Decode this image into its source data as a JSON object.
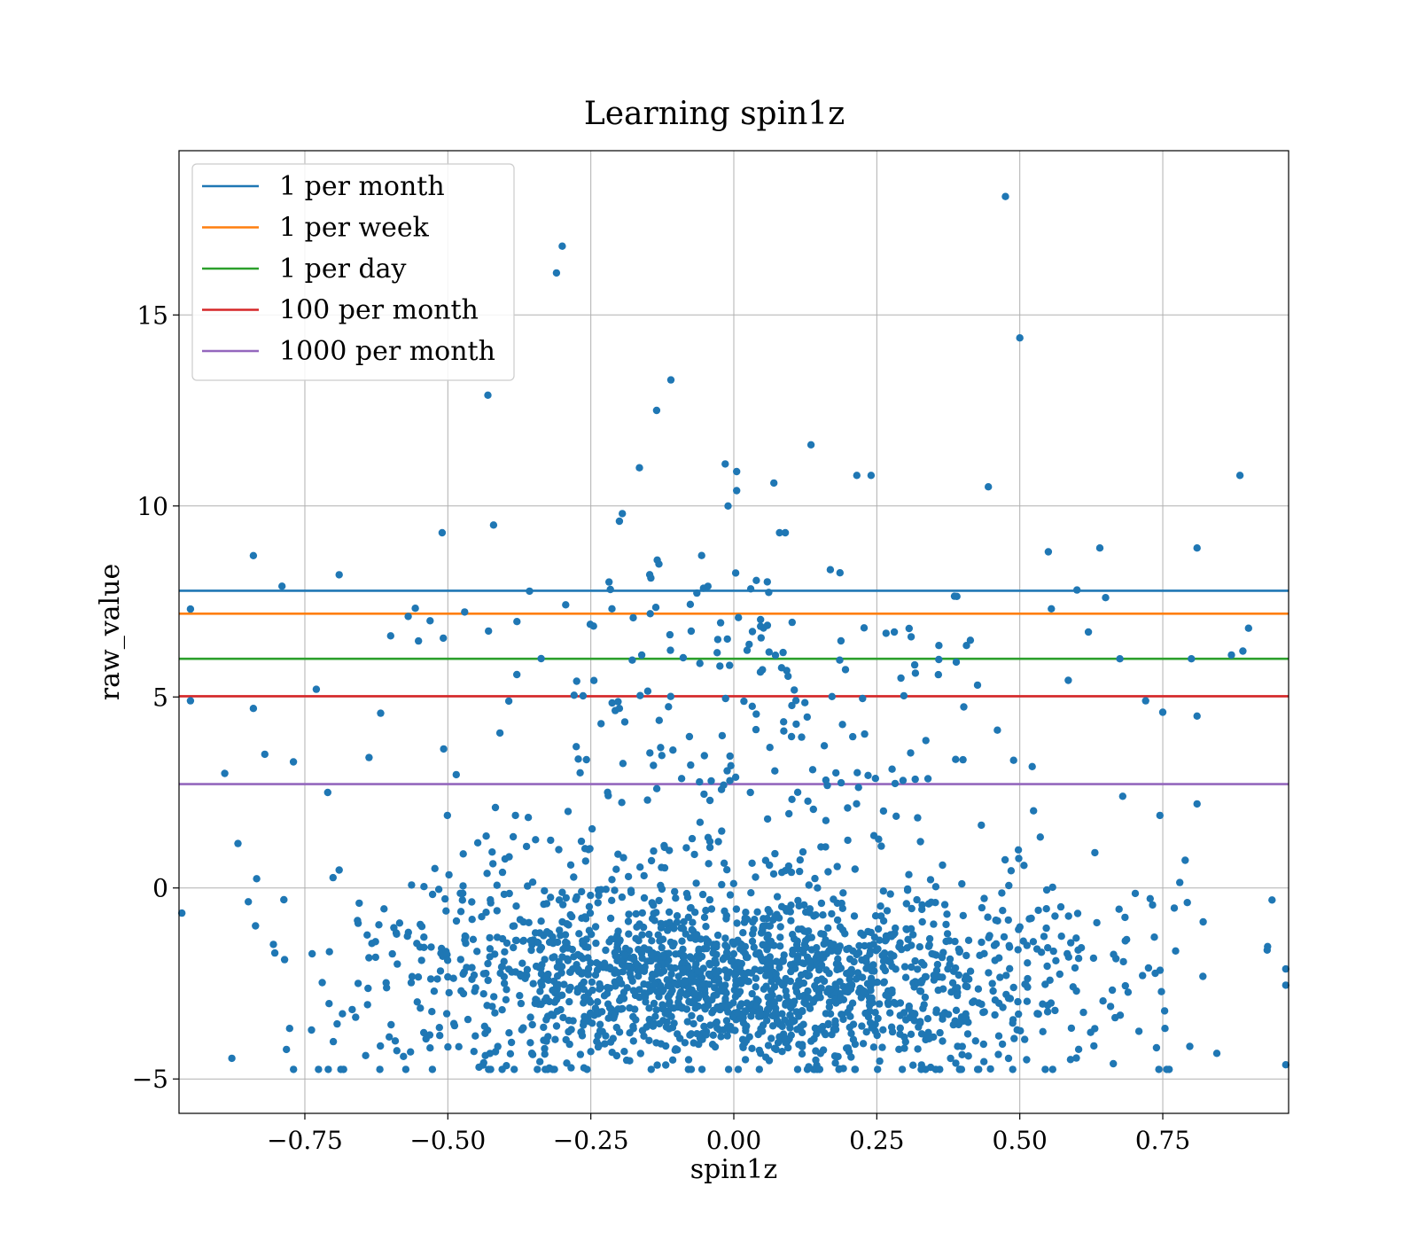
{
  "chart_data": {
    "type": "scatter",
    "title": "Learning spin1z",
    "xlabel": "spin1z",
    "ylabel": "raw_value",
    "xlim": [
      -0.97,
      0.97
    ],
    "ylim": [
      -5.9,
      19.3
    ],
    "xticks": [
      -0.75,
      -0.5,
      -0.25,
      0.0,
      0.25,
      0.5,
      0.75
    ],
    "xtick_labels": [
      "−0.75",
      "−0.50",
      "−0.25",
      "0.00",
      "0.25",
      "0.50",
      "0.75"
    ],
    "yticks": [
      -5,
      0,
      5,
      10,
      15
    ],
    "ytick_labels": [
      "−5",
      "0",
      "5",
      "10",
      "15"
    ],
    "grid": true,
    "legend_position": "upper-left",
    "scatter_color": "#1f77b4",
    "scatter_outliers": [
      {
        "x": 0.475,
        "y": 18.1
      },
      {
        "x": -0.3,
        "y": 16.8
      },
      {
        "x": -0.31,
        "y": 16.1
      },
      {
        "x": 0.5,
        "y": 14.4
      },
      {
        "x": -0.43,
        "y": 12.9
      },
      {
        "x": -0.11,
        "y": 13.3
      },
      {
        "x": -0.135,
        "y": 12.5
      },
      {
        "x": 0.135,
        "y": 11.6
      },
      {
        "x": -0.165,
        "y": 11.0
      },
      {
        "x": -0.015,
        "y": 11.1
      },
      {
        "x": 0.005,
        "y": 10.9
      },
      {
        "x": 0.07,
        "y": 10.6
      },
      {
        "x": 0.215,
        "y": 10.8
      },
      {
        "x": 0.24,
        "y": 10.8
      },
      {
        "x": 0.445,
        "y": 10.5
      },
      {
        "x": 0.005,
        "y": 10.4
      },
      {
        "x": -0.01,
        "y": 10.0
      },
      {
        "x": 0.885,
        "y": 10.8
      },
      {
        "x": -0.195,
        "y": 9.8
      },
      {
        "x": -0.2,
        "y": 9.6
      },
      {
        "x": -0.51,
        "y": 9.3
      },
      {
        "x": -0.42,
        "y": 9.5
      },
      {
        "x": 0.08,
        "y": 9.3
      },
      {
        "x": 0.09,
        "y": 9.3
      },
      {
        "x": 0.81,
        "y": 8.9
      },
      {
        "x": -0.84,
        "y": 8.7
      },
      {
        "x": 0.64,
        "y": 8.9
      },
      {
        "x": 0.55,
        "y": 8.8
      },
      {
        "x": -0.69,
        "y": 8.2
      },
      {
        "x": -0.79,
        "y": 7.9
      },
      {
        "x": -0.95,
        "y": 7.3
      },
      {
        "x": 0.6,
        "y": 7.8
      },
      {
        "x": 0.8,
        "y": 6.0
      },
      {
        "x": 0.87,
        "y": 6.1
      },
      {
        "x": 0.89,
        "y": 6.2
      },
      {
        "x": 0.9,
        "y": 6.8
      },
      {
        "x": 0.72,
        "y": 4.9
      },
      {
        "x": 0.75,
        "y": 4.6
      },
      {
        "x": 0.81,
        "y": 4.5
      },
      {
        "x": -0.84,
        "y": 4.7
      },
      {
        "x": -0.95,
        "y": 4.9
      },
      {
        "x": -0.73,
        "y": 5.2
      },
      {
        "x": -0.77,
        "y": 3.3
      },
      {
        "x": -0.82,
        "y": 3.5
      },
      {
        "x": -0.71,
        "y": 2.5
      },
      {
        "x": -0.89,
        "y": 3.0
      },
      {
        "x": 0.81,
        "y": 2.2
      },
      {
        "x": 0.745,
        "y": 1.9
      },
      {
        "x": 0.68,
        "y": 2.4
      },
      {
        "x": 0.675,
        "y": 6.0
      },
      {
        "x": -0.6,
        "y": 6.6
      },
      {
        "x": 0.62,
        "y": 6.7
      },
      {
        "x": 0.65,
        "y": 7.6
      },
      {
        "x": -0.2,
        "y": 4.7
      }
    ]
  },
  "series": [
    {
      "name": "1 per month",
      "y": 7.78,
      "color": "#1f77b4"
    },
    {
      "name": "1 per week",
      "y": 7.18,
      "color": "#ff7f0e"
    },
    {
      "name": "1 per day",
      "y": 6.0,
      "color": "#2ca02c"
    },
    {
      "name": "100 per month",
      "y": 5.02,
      "color": "#d62728"
    },
    {
      "name": "1000 per month",
      "y": 2.72,
      "color": "#9467bd"
    }
  ]
}
